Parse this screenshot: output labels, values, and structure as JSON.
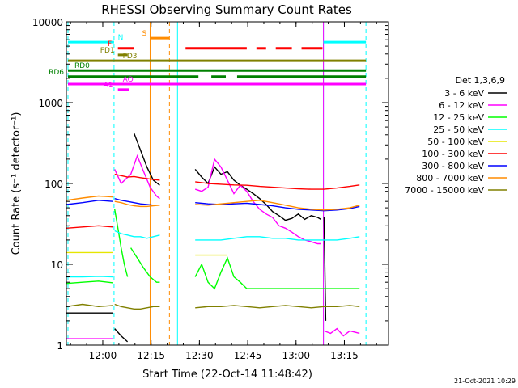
{
  "chart_data": {
    "type": "line",
    "title": "RHESSI Observing Summary Count Rates",
    "xlabel": "Start Time (22-Oct-14 11:48:42)",
    "ylabel": "Count Rate (s⁻¹ detector⁻¹)",
    "x_unit": "minutes since 11:48:42",
    "xlim": [
      0,
      100
    ],
    "x_ticks": [
      {
        "x": 11.3,
        "label": "12:00"
      },
      {
        "x": 26.3,
        "label": "12:15"
      },
      {
        "x": 41.3,
        "label": "12:30"
      },
      {
        "x": 56.3,
        "label": "12:45"
      },
      {
        "x": 71.3,
        "label": "13:00"
      },
      {
        "x": 86.3,
        "label": "13:15"
      }
    ],
    "y_scale": "log",
    "ylim": [
      1,
      10000
    ],
    "y_ticks": [
      {
        "y": 1,
        "label": "1"
      },
      {
        "y": 10,
        "label": "10"
      },
      {
        "y": 100,
        "label": "100"
      },
      {
        "y": 1000,
        "label": "1000"
      },
      {
        "y": 10000,
        "label": "10000"
      }
    ],
    "legend_title": "Det 1,3,6,9",
    "legend_position": "right",
    "series": [
      {
        "name": "3 - 6 keV",
        "color": "#000000",
        "segments": [
          {
            "x": [
              0,
              5,
              10,
              14.5
            ],
            "y": [
              2.5,
              2.5,
              2.5,
              2.5
            ]
          },
          {
            "x": [
              15,
              17,
              19
            ],
            "y": [
              1.6,
              1.3,
              1.1
            ]
          },
          {
            "x": [
              21,
              23,
              25,
              27,
              29
            ],
            "y": [
              420,
              260,
              160,
              110,
              95
            ]
          },
          {
            "x": [
              40,
              42,
              44,
              46,
              48,
              50,
              52,
              54,
              56,
              58,
              60,
              62,
              64,
              66,
              68,
              70,
              72,
              74,
              76,
              78,
              79
            ],
            "y": [
              150,
              120,
              100,
              160,
              130,
              140,
              110,
              95,
              85,
              75,
              65,
              55,
              45,
              40,
              35,
              37,
              42,
              36,
              40,
              38,
              36
            ]
          },
          {
            "x": [
              80,
              80.5
            ],
            "y": [
              38,
              2
            ]
          }
        ]
      },
      {
        "name": "6 - 12 keV",
        "color": "#ff00ff",
        "segments": [
          {
            "x": [
              0,
              5,
              10,
              14.5
            ],
            "y": [
              1.2,
              1.2,
              1.2,
              1.2
            ]
          },
          {
            "x": [
              15,
              17,
              20,
              22,
              24,
              26,
              28,
              29
            ],
            "y": [
              150,
              100,
              130,
              220,
              140,
              90,
              70,
              65
            ]
          },
          {
            "x": [
              40,
              42,
              44,
              46,
              48,
              50,
              52,
              54,
              56,
              58,
              60,
              62,
              64,
              66,
              68,
              70,
              72,
              74,
              76,
              78,
              79
            ],
            "y": [
              85,
              80,
              90,
              200,
              160,
              110,
              75,
              95,
              80,
              60,
              48,
              42,
              38,
              30,
              28,
              25,
              22,
              20,
              19,
              18,
              18
            ]
          },
          {
            "x": [
              80,
              82,
              84,
              86,
              88,
              91
            ],
            "y": [
              1.5,
              1.4,
              1.6,
              1.3,
              1.5,
              1.4
            ]
          }
        ]
      },
      {
        "name": "12 - 25 keV",
        "color": "#00ff00",
        "segments": [
          {
            "x": [
              0,
              5,
              10,
              14.5
            ],
            "y": [
              5.8,
              6.0,
              6.2,
              5.9
            ]
          },
          {
            "x": [
              15,
              16,
              17,
              18,
              19
            ],
            "y": [
              48,
              28,
              16,
              10,
              7
            ]
          },
          {
            "x": [
              20,
              22,
              24,
              26,
              28,
              29
            ],
            "y": [
              16,
              12,
              9,
              7,
              6,
              6
            ]
          },
          {
            "x": [
              40,
              42,
              44,
              46,
              48,
              50,
              52,
              54,
              56,
              58,
              60,
              62,
              64,
              66,
              68,
              70,
              72,
              74,
              76,
              78,
              80,
              82,
              84,
              86,
              88,
              91
            ],
            "y": [
              7,
              10,
              6,
              5,
              8,
              12,
              7,
              6,
              5,
              5,
              5,
              5,
              5,
              5,
              5,
              5,
              5,
              5,
              5,
              5,
              5,
              5,
              5,
              5,
              5,
              5
            ]
          }
        ]
      },
      {
        "name": "25 - 50 keV",
        "color": "#00ffff",
        "segments": [
          {
            "x": [
              0,
              5,
              10,
              14.5
            ],
            "y": [
              7.0,
              7.0,
              7.1,
              7.0
            ]
          },
          {
            "x": [
              15,
              17,
              19,
              21,
              23,
              25,
              27,
              29
            ],
            "y": [
              26,
              24,
              23,
              22,
              22,
              21,
              22,
              23
            ]
          },
          {
            "x": [
              40,
              44,
              48,
              52,
              56,
              60,
              64,
              68,
              72,
              76,
              80,
              84,
              88,
              91
            ],
            "y": [
              20,
              20,
              20,
              21,
              22,
              22,
              21,
              21,
              20,
              20,
              20,
              20,
              21,
              22
            ]
          }
        ]
      },
      {
        "name": "50 - 100 keV",
        "color": "#e6e600",
        "segments": [
          {
            "x": [
              0,
              5,
              10,
              14.5
            ],
            "y": [
              14,
              14,
              14,
              14
            ]
          },
          {
            "x": [
              40,
              44,
              48,
              50
            ],
            "y": [
              13,
              13,
              13,
              13
            ]
          }
        ]
      },
      {
        "name": "100 - 300 keV",
        "color": "#ff0000",
        "segments": [
          {
            "x": [
              0,
              5,
              10,
              14.5
            ],
            "y": [
              28,
              29,
              30,
              29
            ]
          },
          {
            "x": [
              15,
              17,
              19,
              21,
              23,
              25,
              27,
              29
            ],
            "y": [
              130,
              125,
              120,
              122,
              118,
              115,
              112,
              110
            ]
          },
          {
            "x": [
              40,
              44,
              48,
              52,
              56,
              60,
              64,
              68,
              72,
              76,
              80,
              84,
              88,
              91
            ],
            "y": [
              105,
              100,
              98,
              96,
              95,
              92,
              90,
              88,
              86,
              85,
              85,
              88,
              92,
              96
            ]
          }
        ]
      },
      {
        "name": "300 - 800 keV",
        "color": "#0000ff",
        "segments": [
          {
            "x": [
              0,
              5,
              10,
              14.5
            ],
            "y": [
              55,
              58,
              62,
              60
            ]
          },
          {
            "x": [
              15,
              17,
              19,
              21,
              23,
              25,
              27,
              29
            ],
            "y": [
              65,
              62,
              60,
              58,
              56,
              55,
              54,
              54
            ]
          },
          {
            "x": [
              40,
              44,
              48,
              52,
              56,
              60,
              64,
              68,
              72,
              76,
              80,
              84,
              88,
              91
            ],
            "y": [
              58,
              56,
              55,
              56,
              57,
              55,
              53,
              50,
              48,
              47,
              46,
              47,
              49,
              52
            ]
          }
        ]
      },
      {
        "name": "800 - 7000 keV",
        "color": "#ff8c00",
        "segments": [
          {
            "x": [
              0,
              5,
              10,
              14.5
            ],
            "y": [
              62,
              66,
              70,
              68
            ]
          },
          {
            "x": [
              15,
              17,
              19,
              21,
              23,
              25,
              27,
              29
            ],
            "y": [
              60,
              58,
              55,
              53,
              52,
              52,
              53,
              54
            ]
          },
          {
            "x": [
              40,
              44,
              48,
              52,
              56,
              60,
              64,
              68,
              72,
              76,
              80,
              84,
              88,
              91
            ],
            "y": [
              55,
              54,
              56,
              58,
              60,
              62,
              58,
              54,
              50,
              48,
              47,
              48,
              50,
              54
            ]
          }
        ]
      },
      {
        "name": "7000 - 15000 keV",
        "color": "#808000",
        "segments": [
          {
            "x": [
              0,
              5,
              10,
              14.5
            ],
            "y": [
              3.0,
              3.2,
              3.0,
              3.1
            ]
          },
          {
            "x": [
              15,
              17,
              19,
              21,
              23,
              25,
              27,
              29
            ],
            "y": [
              3.2,
              3.0,
              2.9,
              2.8,
              2.8,
              2.9,
              3.0,
              3.0
            ]
          },
          {
            "x": [
              40,
              44,
              48,
              52,
              56,
              60,
              64,
              68,
              72,
              76,
              80,
              84,
              88,
              91
            ],
            "y": [
              2.9,
              3.0,
              3.0,
              3.1,
              3.0,
              2.9,
              3.0,
              3.1,
              3.0,
              2.9,
              3.0,
              3.0,
              3.1,
              3.0
            ]
          }
        ]
      }
    ],
    "vertical_markers": [
      {
        "x": 0.5,
        "color": "#00ffff",
        "style": "dashed"
      },
      {
        "x": 14.8,
        "color": "#00ffff",
        "style": "dashed"
      },
      {
        "x": 26.0,
        "color": "#ff8c00",
        "style": "solid"
      },
      {
        "x": 32.0,
        "color": "#ff8c00",
        "style": "dashed"
      },
      {
        "x": 34.5,
        "color": "#00ffff",
        "style": "solid"
      },
      {
        "x": 79.8,
        "color": "#00ffff",
        "style": "solid"
      },
      {
        "x": 79.8,
        "color": "#ff00ff",
        "style": "solid"
      },
      {
        "x": 93.0,
        "color": "#00ffff",
        "style": "dashed"
      }
    ],
    "flag_bars": [
      {
        "label": "S",
        "color": "#ff8c00",
        "level": 6300,
        "segments": [
          [
            26,
            32
          ]
        ],
        "label_x": 23.5
      },
      {
        "label": "N",
        "color": "#00ffff",
        "level": 5600,
        "segments": [
          [
            0.5,
            14.8
          ],
          [
            79.8,
            93
          ]
        ],
        "label_x": 16
      },
      {
        "label": "F",
        "color": "#ff0000",
        "level": 4700,
        "segments": [
          [
            16,
            21
          ],
          [
            37,
            56
          ],
          [
            59,
            62
          ],
          [
            65,
            70
          ],
          [
            73,
            79.5
          ]
        ],
        "label_x": 12.8
      },
      {
        "label": "FD1",
        "color": "#808000",
        "level": 3900,
        "segments": [
          [
            16,
            19
          ]
        ],
        "label_x": 10.5
      },
      {
        "label": "FD3",
        "color": "#808000",
        "level": 3300,
        "segments": [
          [
            0.5,
            93
          ]
        ],
        "label_x": 17.5
      },
      {
        "label": "RD0",
        "color": "#008000",
        "level": 2500,
        "segments": [
          [
            0.5,
            93
          ]
        ],
        "label_x": 2.5
      },
      {
        "label": "RD6",
        "color": "#008000",
        "level": 2100,
        "segments": [
          [
            0.5,
            41
          ],
          [
            45,
            49.5
          ],
          [
            53,
            93
          ]
        ],
        "label_x": -5.5
      },
      {
        "label": "AQ",
        "color": "#ff00ff",
        "level": 1700,
        "segments": [
          [
            0.5,
            93
          ]
        ],
        "label_x": 17.5
      },
      {
        "label": "A1",
        "color": "#ff00ff",
        "level": 1450,
        "segments": [
          [
            16,
            19.5
          ]
        ],
        "label_x": 11.5
      }
    ]
  },
  "footer_timestamp": "21-Oct-2021 10:29"
}
